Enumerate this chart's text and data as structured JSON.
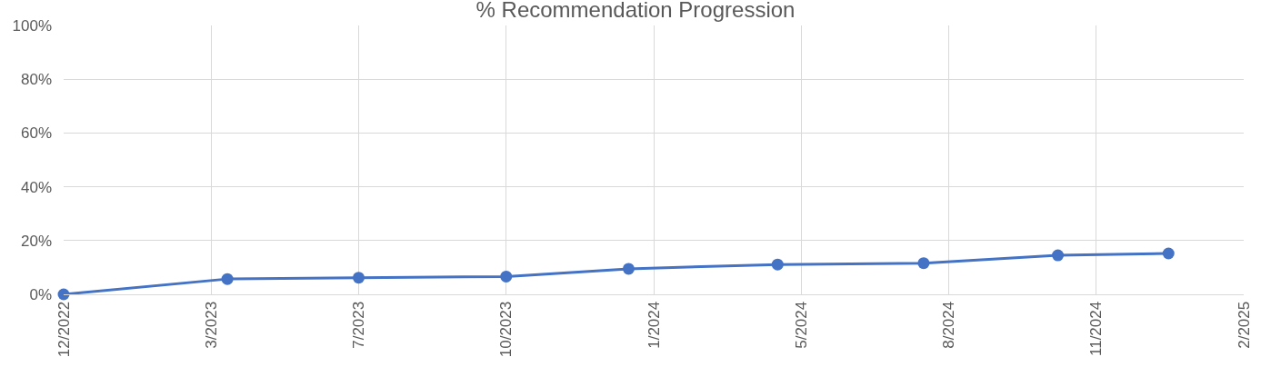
{
  "chart_data": {
    "type": "line",
    "title": "% Recommendation Progression",
    "x": [
      "2022-12-15",
      "2023-04-05",
      "2023-07-03",
      "2023-10-11",
      "2024-01-02",
      "2024-04-12",
      "2024-07-20",
      "2024-10-19",
      "2025-01-02"
    ],
    "series": [
      {
        "color": "#4472c4",
        "values": [
          0,
          5.7,
          6.2,
          6.6,
          9.5,
          11.1,
          11.6,
          14.5,
          15.2
        ]
      }
    ],
    "xlim": [
      "2022-12-15",
      "2025-02-22"
    ],
    "xticks": [
      {
        "value": "2022-12-15",
        "label": "12/2022"
      },
      {
        "value": "2023-03-25",
        "label": "3/2023"
      },
      {
        "value": "2023-07-03",
        "label": "7/2023"
      },
      {
        "value": "2023-10-11",
        "label": "10/2023"
      },
      {
        "value": "2024-01-19",
        "label": "1/2024"
      },
      {
        "value": "2024-04-28",
        "label": "5/2024"
      },
      {
        "value": "2024-08-06",
        "label": "8/2024"
      },
      {
        "value": "2024-11-14",
        "label": "11/2024"
      },
      {
        "value": "2025-02-22",
        "label": "2/2025"
      }
    ],
    "ylim": [
      0,
      100
    ],
    "yticks": [
      {
        "value": 0,
        "label": "0%"
      },
      {
        "value": 20,
        "label": "20%"
      },
      {
        "value": 40,
        "label": "40%"
      },
      {
        "value": 60,
        "label": "60%"
      },
      {
        "value": 80,
        "label": "80%"
      },
      {
        "value": 100,
        "label": "100%"
      }
    ],
    "grid": true,
    "marker": "circle",
    "line_style": "solid",
    "legend": false
  }
}
